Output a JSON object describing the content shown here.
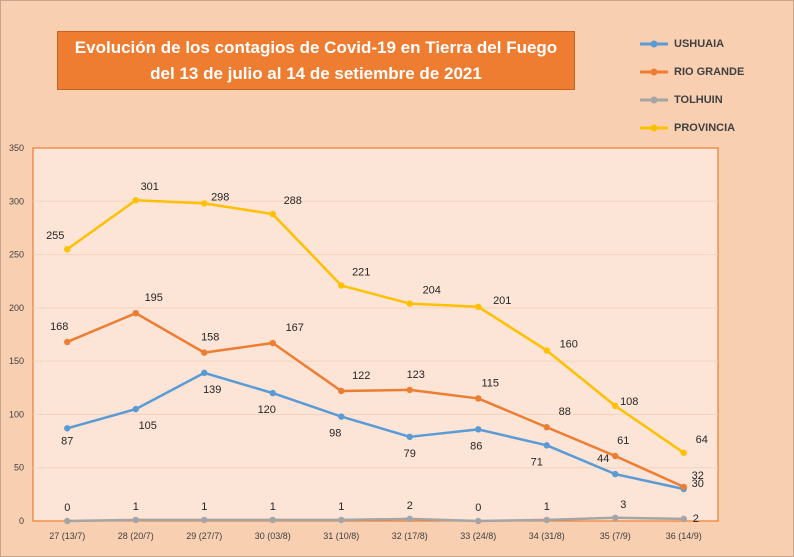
{
  "title": {
    "line1": "Evolución de los contagios de Covid-19 en Tierra del Fuego",
    "line2": "del 13 de julio al 14 de setiembre de 2021"
  },
  "chart_data": {
    "type": "line",
    "categories": [
      "27 (13/7)",
      "28 (20/7)",
      "29 (27/7)",
      "30 (03/8)",
      "31 (10/8)",
      "32 (17/8)",
      "33 (24/8)",
      "34 (31/8)",
      "35 (7/9)",
      "36 (14/9)"
    ],
    "ylim": [
      0,
      350
    ],
    "yticks": [
      0,
      50,
      100,
      150,
      200,
      250,
      300,
      350
    ],
    "grid": true,
    "legend_placement": "top-right",
    "series": [
      {
        "name": "USHUAIA",
        "color": "#5b9bd5",
        "values": [
          87,
          105,
          139,
          120,
          98,
          79,
          86,
          71,
          44,
          30
        ]
      },
      {
        "name": "RIO GRANDE",
        "color": "#ed7d31",
        "values": [
          168,
          195,
          158,
          167,
          122,
          123,
          115,
          88,
          61,
          32
        ]
      },
      {
        "name": "TOLHUIN",
        "color": "#a5a5a5",
        "values": [
          0,
          1,
          1,
          1,
          1,
          2,
          0,
          1,
          3,
          2
        ]
      },
      {
        "name": "PROVINCIA",
        "color": "#ffc000",
        "values": [
          255,
          301,
          298,
          288,
          221,
          204,
          201,
          160,
          108,
          64
        ]
      }
    ]
  }
}
